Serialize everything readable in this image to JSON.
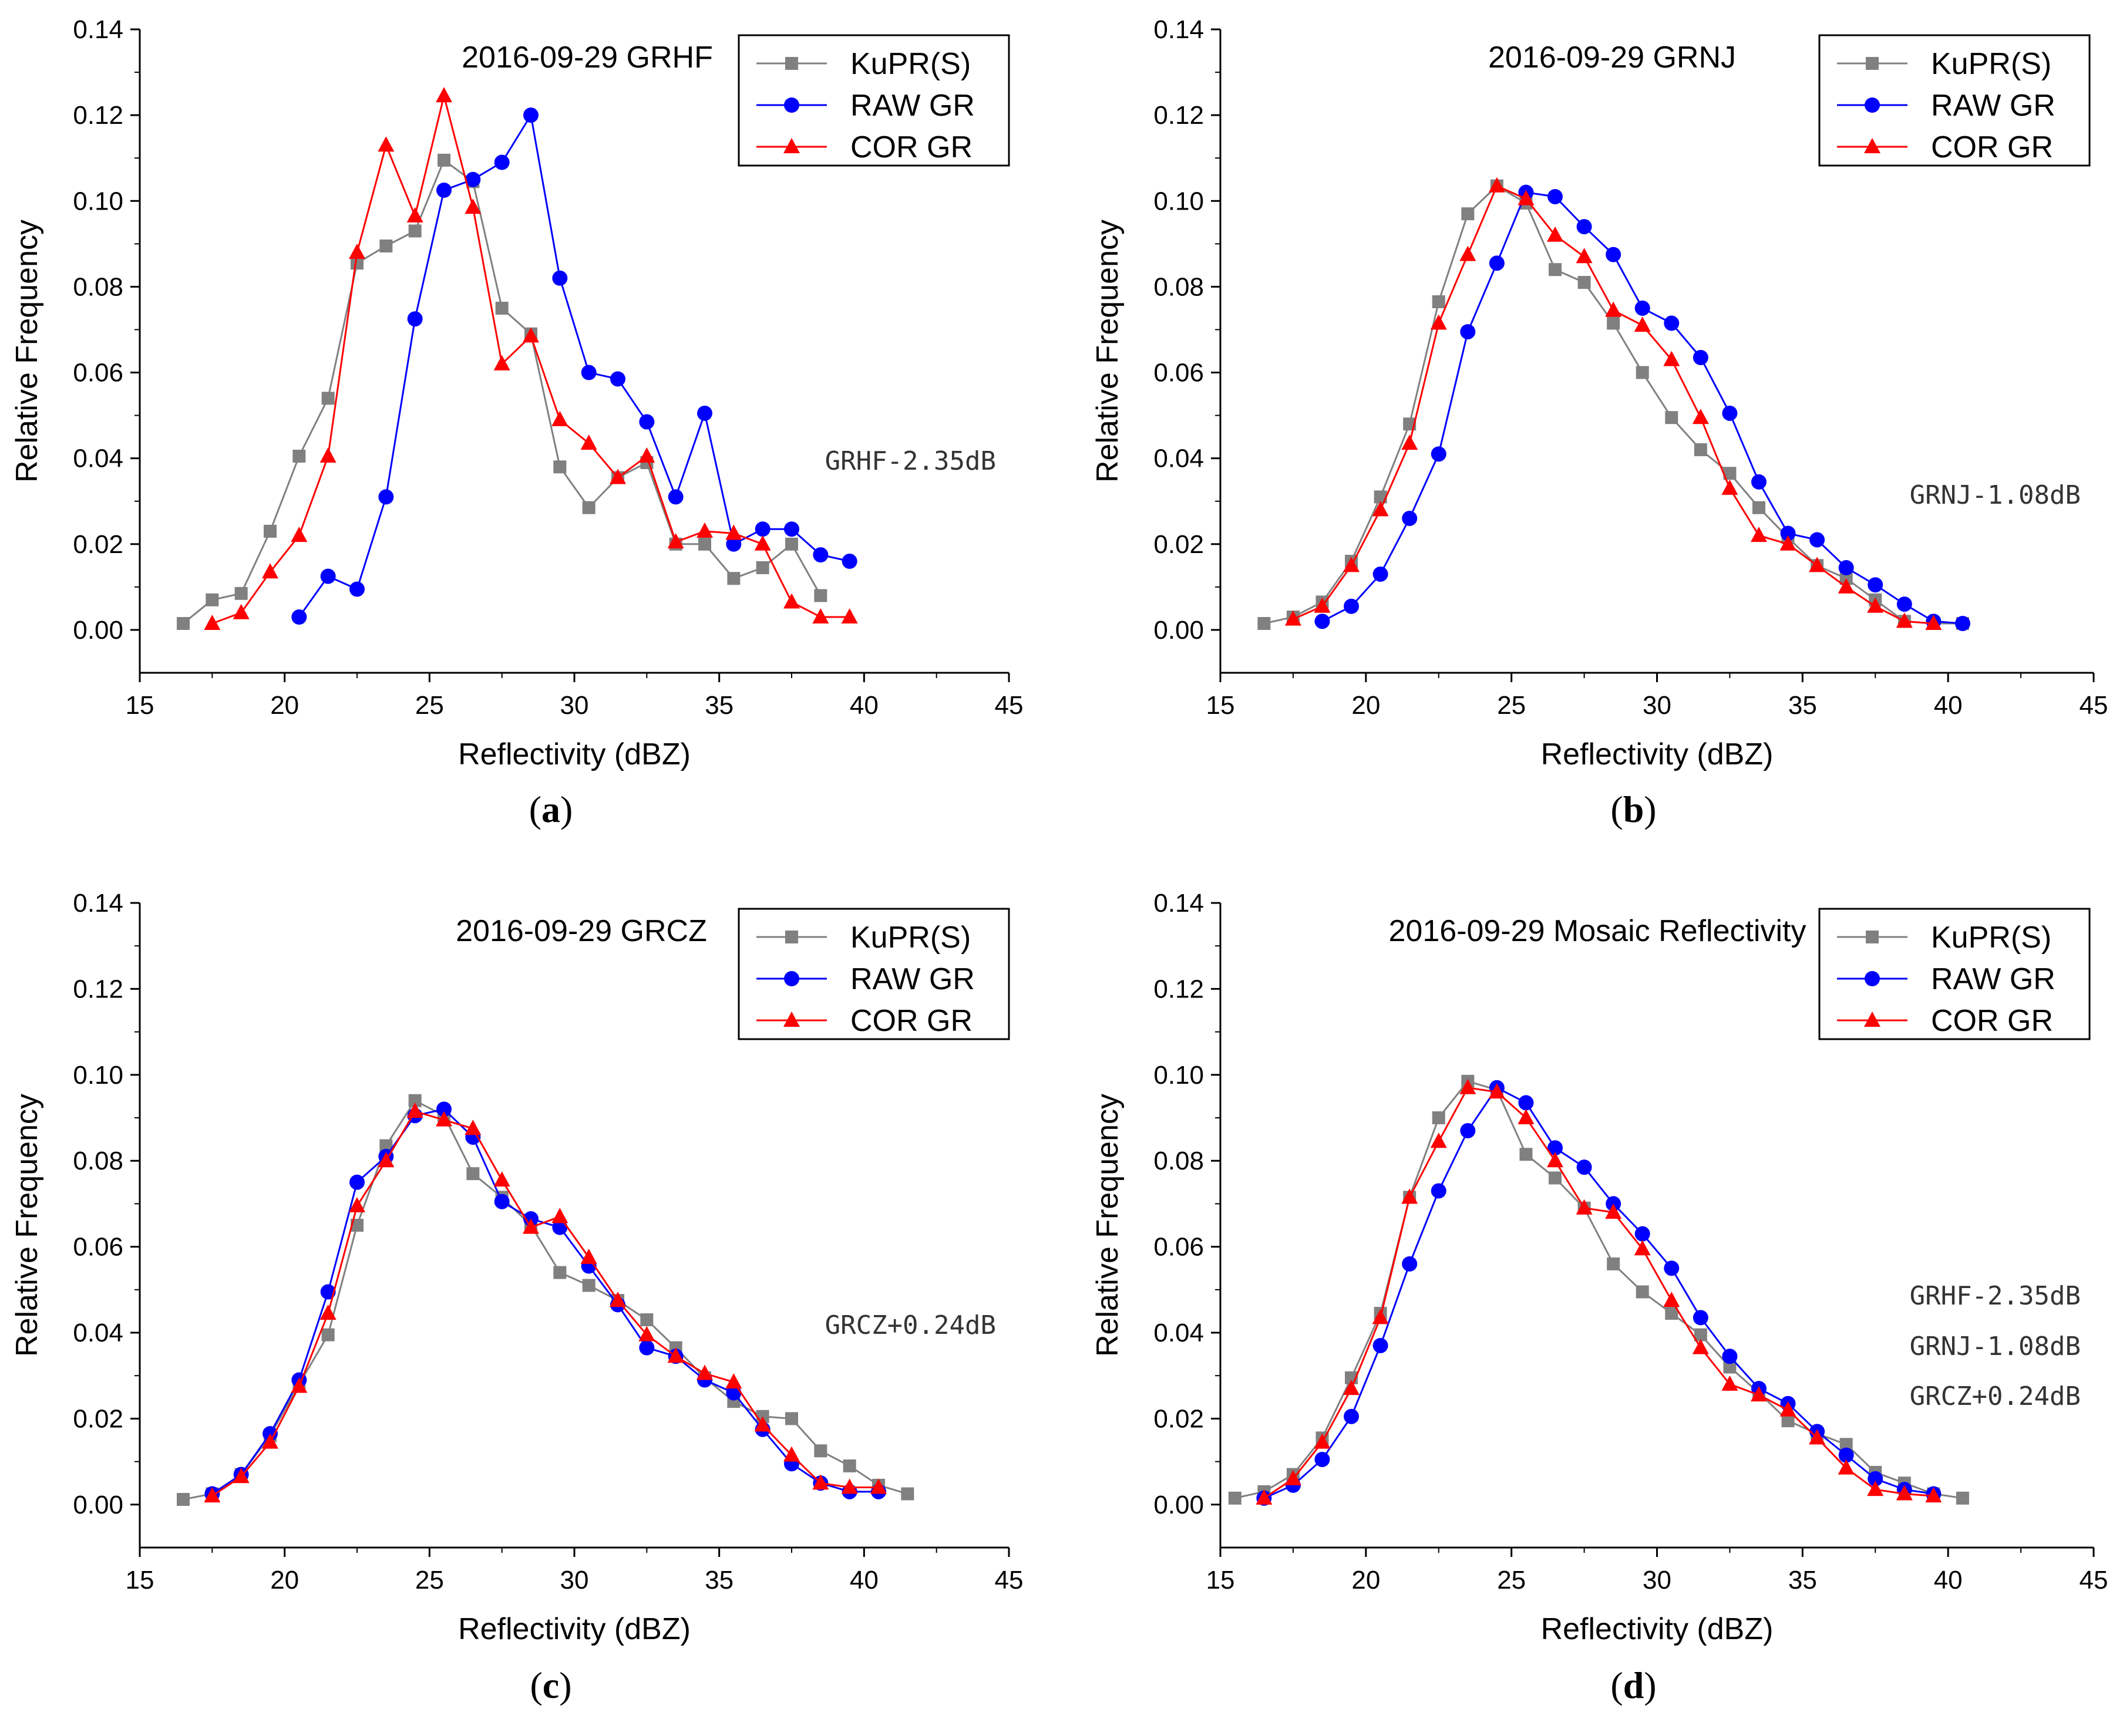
{
  "chart_data": [
    {
      "panel": "(a)",
      "panel_letter": "a",
      "type": "line",
      "title": "2016-09-29 GRHF",
      "xlabel": "Reflectivity (dBZ)",
      "ylabel": "Relative Frequency",
      "xlim": [
        15,
        45
      ],
      "ylim": [
        -0.01,
        0.14
      ],
      "xticks": [
        "15",
        "20",
        "25",
        "30",
        "35",
        "40",
        "45"
      ],
      "yticks": [
        "0.00",
        "0.02",
        "0.04",
        "0.06",
        "0.08",
        "0.10",
        "0.12",
        "0.14"
      ],
      "legend": [
        "KuPR(S)",
        "RAW GR",
        "COR GR"
      ],
      "annotations": [
        "GRHF-2.35dB"
      ],
      "series": [
        {
          "name": "KuPR(S)",
          "color": "#808080",
          "marker": "square",
          "x": [
            16.5,
            17.5,
            18.5,
            19.5,
            20.5,
            21.5,
            22.5,
            23.5,
            24.5,
            25.5,
            26.5,
            27.5,
            28.5,
            29.5,
            30.5,
            31.5,
            32.5,
            33.5,
            34.5,
            35.5,
            36.5,
            37.5,
            38.5
          ],
          "y": [
            0.0015,
            0.007,
            0.0085,
            0.023,
            0.0405,
            0.054,
            0.0855,
            0.0895,
            0.093,
            0.1095,
            0.1045,
            0.075,
            0.069,
            0.038,
            0.0285,
            0.0355,
            0.039,
            0.02,
            0.02,
            0.012,
            0.0145,
            0.02,
            0.008
          ]
        },
        {
          "name": "RAW GR",
          "color": "#0000ff",
          "marker": "circle",
          "x": [
            20.5,
            21.5,
            22.5,
            23.5,
            24.5,
            25.5,
            26.5,
            27.5,
            28.5,
            29.5,
            30.5,
            31.5,
            32.5,
            33.5,
            34.5,
            35.5,
            36.5,
            37.5,
            38.5,
            39.5
          ],
          "y": [
            0.003,
            0.0125,
            0.0095,
            0.031,
            0.0725,
            0.1025,
            0.105,
            0.109,
            0.12,
            0.082,
            0.06,
            0.0585,
            0.0485,
            0.031,
            0.0505,
            0.02,
            0.0235,
            0.0235,
            0.0175,
            0.016
          ]
        },
        {
          "name": "COR GR",
          "color": "#ff0000",
          "marker": "triangle",
          "x": [
            17.5,
            18.5,
            19.5,
            20.5,
            21.5,
            22.5,
            23.5,
            24.5,
            25.5,
            26.5,
            27.5,
            28.5,
            29.5,
            30.5,
            31.5,
            32.5,
            33.5,
            34.5,
            35.5,
            36.5,
            37.5,
            38.5,
            39.5
          ],
          "y": [
            0.0015,
            0.004,
            0.0135,
            0.022,
            0.0405,
            0.088,
            0.113,
            0.0965,
            0.1245,
            0.0985,
            0.062,
            0.0685,
            0.049,
            0.0435,
            0.0355,
            0.0405,
            0.0205,
            0.023,
            0.0225,
            0.02,
            0.0065,
            0.003,
            0.003
          ]
        }
      ]
    },
    {
      "panel": "(b)",
      "panel_letter": "b",
      "type": "line",
      "title": "2016-09-29 GRNJ",
      "xlabel": "Reflectivity (dBZ)",
      "ylabel": "Relative Frequency",
      "xlim": [
        15,
        45
      ],
      "ylim": [
        -0.01,
        0.14
      ],
      "xticks": [
        "15",
        "20",
        "25",
        "30",
        "35",
        "40",
        "45"
      ],
      "yticks": [
        "0.00",
        "0.02",
        "0.04",
        "0.06",
        "0.08",
        "0.10",
        "0.12",
        "0.14"
      ],
      "legend": [
        "KuPR(S)",
        "RAW GR",
        "COR GR"
      ],
      "annotations": [
        "GRNJ-1.08dB"
      ],
      "series": [
        {
          "name": "KuPR(S)",
          "color": "#808080",
          "marker": "square",
          "x": [
            16.5,
            17.5,
            18.5,
            19.5,
            20.5,
            21.5,
            22.5,
            23.5,
            24.5,
            25.5,
            26.5,
            27.5,
            28.5,
            29.5,
            30.5,
            31.5,
            32.5,
            33.5,
            34.5,
            35.5,
            36.5,
            37.5,
            38.5,
            39.5,
            40.5
          ],
          "y": [
            0.0015,
            0.003,
            0.0065,
            0.016,
            0.031,
            0.048,
            0.0765,
            0.097,
            0.1035,
            0.0995,
            0.084,
            0.081,
            0.0715,
            0.06,
            0.0495,
            0.042,
            0.0365,
            0.0285,
            0.0215,
            0.015,
            0.012,
            0.007,
            0.002,
            0.0015,
            0.0015
          ]
        },
        {
          "name": "RAW GR",
          "color": "#0000ff",
          "marker": "circle",
          "x": [
            18.5,
            19.5,
            20.5,
            21.5,
            22.5,
            23.5,
            24.5,
            25.5,
            26.5,
            27.5,
            28.5,
            29.5,
            30.5,
            31.5,
            32.5,
            33.5,
            34.5,
            35.5,
            36.5,
            37.5,
            38.5,
            39.5,
            40.5
          ],
          "y": [
            0.002,
            0.0055,
            0.013,
            0.026,
            0.041,
            0.0695,
            0.0855,
            0.102,
            0.101,
            0.094,
            0.0875,
            0.075,
            0.0715,
            0.0635,
            0.0505,
            0.0345,
            0.0225,
            0.021,
            0.0145,
            0.0105,
            0.006,
            0.002,
            0.0015
          ]
        },
        {
          "name": "COR GR",
          "color": "#ff0000",
          "marker": "triangle",
          "x": [
            17.5,
            18.5,
            19.5,
            20.5,
            21.5,
            22.5,
            23.5,
            24.5,
            25.5,
            26.5,
            27.5,
            28.5,
            29.5,
            30.5,
            31.5,
            32.5,
            33.5,
            34.5,
            35.5,
            36.5,
            37.5,
            38.5,
            39.5
          ],
          "y": [
            0.0025,
            0.0055,
            0.015,
            0.028,
            0.0435,
            0.0715,
            0.0875,
            0.1035,
            0.1005,
            0.092,
            0.087,
            0.0745,
            0.071,
            0.063,
            0.0495,
            0.033,
            0.022,
            0.02,
            0.015,
            0.01,
            0.0055,
            0.002,
            0.0015
          ]
        }
      ]
    },
    {
      "panel": "(c)",
      "panel_letter": "c",
      "type": "line",
      "title": "2016-09-29 GRCZ",
      "xlabel": "Reflectivity (dBZ)",
      "ylabel": "Relative Frequency",
      "xlim": [
        15,
        45
      ],
      "ylim": [
        -0.01,
        0.14
      ],
      "xticks": [
        "15",
        "20",
        "25",
        "30",
        "35",
        "40",
        "45"
      ],
      "yticks": [
        "0.00",
        "0.02",
        "0.04",
        "0.06",
        "0.08",
        "0.10",
        "0.12",
        "0.14"
      ],
      "legend": [
        "KuPR(S)",
        "RAW GR",
        "COR GR"
      ],
      "annotations": [
        "GRCZ+0.24dB"
      ],
      "series": [
        {
          "name": "KuPR(S)",
          "color": "#808080",
          "marker": "square",
          "x": [
            16.5,
            17.5,
            18.5,
            19.5,
            20.5,
            21.5,
            22.5,
            23.5,
            24.5,
            25.5,
            26.5,
            27.5,
            28.5,
            29.5,
            30.5,
            31.5,
            32.5,
            33.5,
            34.5,
            35.5,
            36.5,
            37.5,
            38.5,
            39.5,
            40.5,
            41.5
          ],
          "y": [
            0.0012,
            0.0025,
            0.007,
            0.016,
            0.028,
            0.0395,
            0.065,
            0.0835,
            0.094,
            0.0905,
            0.077,
            0.0715,
            0.065,
            0.054,
            0.051,
            0.0475,
            0.043,
            0.0365,
            0.0295,
            0.024,
            0.0205,
            0.02,
            0.0125,
            0.009,
            0.0045,
            0.0025
          ]
        },
        {
          "name": "RAW GR",
          "color": "#0000ff",
          "marker": "circle",
          "x": [
            17.5,
            18.5,
            19.5,
            20.5,
            21.5,
            22.5,
            23.5,
            24.5,
            25.5,
            26.5,
            27.5,
            28.5,
            29.5,
            30.5,
            31.5,
            32.5,
            33.5,
            34.5,
            35.5,
            36.5,
            37.5,
            38.5,
            39.5,
            40.5
          ],
          "y": [
            0.0025,
            0.007,
            0.0165,
            0.029,
            0.0495,
            0.075,
            0.081,
            0.0905,
            0.092,
            0.0855,
            0.0705,
            0.0665,
            0.0645,
            0.0555,
            0.0465,
            0.0365,
            0.0345,
            0.029,
            0.026,
            0.0175,
            0.0095,
            0.005,
            0.003,
            0.003
          ]
        },
        {
          "name": "COR GR",
          "color": "#ff0000",
          "marker": "triangle",
          "x": [
            17.5,
            18.5,
            19.5,
            20.5,
            21.5,
            22.5,
            23.5,
            24.5,
            25.5,
            26.5,
            27.5,
            28.5,
            29.5,
            30.5,
            31.5,
            32.5,
            33.5,
            34.5,
            35.5,
            36.5,
            37.5,
            38.5,
            39.5,
            40.5
          ],
          "y": [
            0.002,
            0.0065,
            0.0145,
            0.0275,
            0.0445,
            0.0695,
            0.08,
            0.0915,
            0.0895,
            0.0875,
            0.0755,
            0.0645,
            0.067,
            0.0575,
            0.0475,
            0.0395,
            0.0345,
            0.0305,
            0.0285,
            0.0185,
            0.0115,
            0.005,
            0.004,
            0.004
          ]
        }
      ]
    },
    {
      "panel": "(d)",
      "panel_letter": "d",
      "type": "line",
      "title": "2016-09-29 Mosaic Reflectivity",
      "xlabel": "Reflectivity (dBZ)",
      "ylabel": "Relative Frequency",
      "xlim": [
        15,
        45
      ],
      "ylim": [
        -0.01,
        0.14
      ],
      "xticks": [
        "15",
        "20",
        "25",
        "30",
        "35",
        "40",
        "45"
      ],
      "yticks": [
        "0.00",
        "0.02",
        "0.04",
        "0.06",
        "0.08",
        "0.10",
        "0.12",
        "0.14"
      ],
      "legend": [
        "KuPR(S)",
        "RAW GR",
        "COR GR"
      ],
      "annotations": [
        "GRHF-2.35dB",
        "GRNJ-1.08dB",
        "GRCZ+0.24dB"
      ],
      "series": [
        {
          "name": "KuPR(S)",
          "color": "#808080",
          "marker": "square",
          "x": [
            15.5,
            16.5,
            17.5,
            18.5,
            19.5,
            20.5,
            21.5,
            22.5,
            23.5,
            24.5,
            25.5,
            26.5,
            27.5,
            28.5,
            29.5,
            30.5,
            31.5,
            32.5,
            33.5,
            34.5,
            35.5,
            36.5,
            37.5,
            38.5,
            39.5,
            40.5
          ],
          "y": [
            0.0015,
            0.003,
            0.007,
            0.0155,
            0.0295,
            0.0445,
            0.0715,
            0.09,
            0.0985,
            0.0965,
            0.0815,
            0.076,
            0.069,
            0.056,
            0.0495,
            0.0445,
            0.0395,
            0.032,
            0.026,
            0.0195,
            0.0165,
            0.014,
            0.0075,
            0.005,
            0.0025,
            0.0015
          ]
        },
        {
          "name": "RAW GR",
          "color": "#0000ff",
          "marker": "circle",
          "x": [
            16.5,
            17.5,
            18.5,
            19.5,
            20.5,
            21.5,
            22.5,
            23.5,
            24.5,
            25.5,
            26.5,
            27.5,
            28.5,
            29.5,
            30.5,
            31.5,
            32.5,
            33.5,
            34.5,
            35.5,
            36.5,
            37.5,
            38.5,
            39.5
          ],
          "y": [
            0.0015,
            0.0045,
            0.0105,
            0.0205,
            0.037,
            0.056,
            0.073,
            0.087,
            0.097,
            0.0935,
            0.083,
            0.0785,
            0.07,
            0.063,
            0.055,
            0.0435,
            0.0345,
            0.027,
            0.0235,
            0.017,
            0.0115,
            0.006,
            0.0035,
            0.0025
          ]
        },
        {
          "name": "COR GR",
          "color": "#ff0000",
          "marker": "triangle",
          "x": [
            16.5,
            17.5,
            18.5,
            19.5,
            20.5,
            21.5,
            22.5,
            23.5,
            24.5,
            25.5,
            26.5,
            27.5,
            28.5,
            29.5,
            30.5,
            31.5,
            32.5,
            33.5,
            34.5,
            35.5,
            36.5,
            37.5,
            38.5,
            39.5
          ],
          "y": [
            0.0015,
            0.006,
            0.0145,
            0.027,
            0.0435,
            0.0715,
            0.0845,
            0.097,
            0.096,
            0.09,
            0.08,
            0.069,
            0.068,
            0.0595,
            0.0475,
            0.0365,
            0.028,
            0.0255,
            0.022,
            0.0155,
            0.0085,
            0.0035,
            0.0025,
            0.002
          ]
        }
      ]
    }
  ]
}
